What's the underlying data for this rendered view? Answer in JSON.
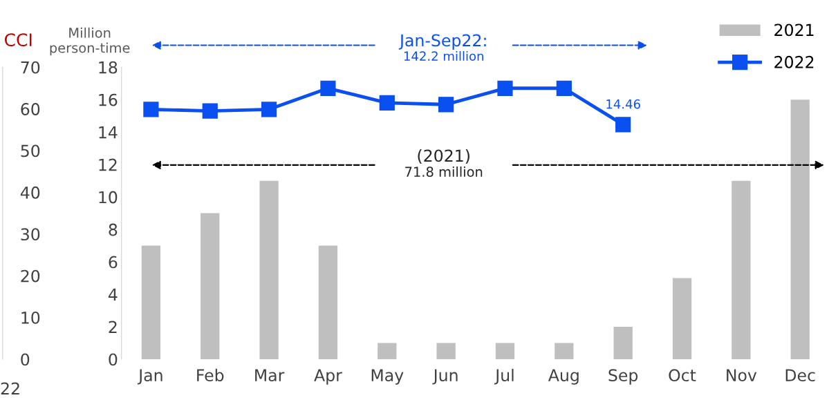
{
  "chart_data": {
    "type": "bar",
    "ylabel": "Million\nperson-time",
    "categories": [
      "Jan",
      "Feb",
      "Mar",
      "Apr",
      "May",
      "Jun",
      "Jul",
      "Aug",
      "Sep",
      "Oct",
      "Nov",
      "Dec"
    ],
    "series": [
      {
        "name": "2021",
        "color": "#bfbfbf",
        "values": [
          7,
          9,
          11,
          7,
          1,
          1,
          1,
          1,
          2,
          5,
          11,
          16
        ]
      },
      {
        "name": "2022",
        "type": "line",
        "color": "#0a4ff0",
        "marker": "square",
        "values": [
          15.4,
          15.3,
          15.4,
          16.7,
          15.8,
          15.7,
          16.7,
          16.7,
          14.46,
          null,
          null,
          null
        ],
        "value_labels": [
          null,
          null,
          null,
          null,
          null,
          null,
          null,
          null,
          "14.46",
          null,
          null,
          null
        ]
      }
    ],
    "ylim": [
      0,
      18
    ],
    "yticks": [
      0,
      2,
      4,
      6,
      8,
      10,
      12,
      14,
      16,
      18
    ],
    "y3lim": [
      0,
      70
    ],
    "y3ticks": [
      0,
      10,
      20,
      30,
      40,
      50,
      60,
      70
    ],
    "y3label": "CCI",
    "annotations": [
      "Jan-Sep22:\n142.2 million",
      "(2021)\n71.8 million",
      "22"
    ],
    "legend": "top right",
    "grid": false
  }
}
